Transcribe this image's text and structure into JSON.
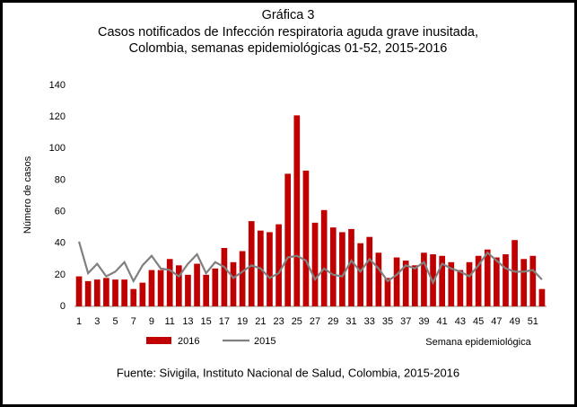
{
  "chart_data": {
    "type": "bar+line",
    "title": "Gráfica 3",
    "subtitle": [
      "Casos notificados de Infección respiratoria aguda grave inusitada,",
      "Colombia, semanas epidemiológicas 01-52, 2015-2016"
    ],
    "y_label": "Número de casos",
    "x_label": "Semana epidemiológica",
    "source": "Fuente: Sivigila, Instituto Nacional de Salud, Colombia, 2015-2016",
    "categories": [
      "1",
      null,
      "3",
      null,
      "5",
      null,
      "7",
      null,
      "9",
      null,
      "11",
      null,
      "13",
      null,
      "15",
      null,
      "17",
      null,
      "19",
      null,
      "21",
      null,
      "23",
      null,
      "25",
      null,
      "27",
      null,
      "29",
      null,
      "31",
      null,
      "33",
      null,
      "35",
      null,
      "37",
      null,
      "39",
      null,
      "41",
      null,
      "43",
      null,
      "45",
      null,
      "47",
      null,
      "49",
      null,
      "51",
      null
    ],
    "series": [
      {
        "name": "2016",
        "type": "bar",
        "color": "#c00000",
        "values": [
          19,
          16,
          17,
          18,
          17,
          17,
          11,
          15,
          23,
          23,
          30,
          26,
          20,
          27,
          20,
          24,
          37,
          28,
          35,
          54,
          48,
          47,
          52,
          84,
          121,
          86,
          53,
          61,
          50,
          47,
          49,
          40,
          44,
          34,
          18,
          31,
          29,
          26,
          34,
          33,
          32,
          28,
          23,
          28,
          32,
          36,
          31,
          33,
          42,
          30,
          32,
          11
        ]
      },
      {
        "name": "2015",
        "type": "line",
        "color": "#808080",
        "values": [
          41,
          21,
          27,
          19,
          22,
          28,
          16,
          26,
          32,
          24,
          23,
          19,
          27,
          33,
          21,
          28,
          25,
          18,
          22,
          26,
          24,
          18,
          21,
          31,
          32,
          29,
          17,
          24,
          20,
          19,
          29,
          22,
          30,
          24,
          16,
          20,
          26,
          24,
          28,
          15,
          27,
          24,
          22,
          19,
          26,
          34,
          29,
          24,
          22,
          22,
          23,
          17
        ]
      }
    ],
    "ylim": [
      0,
      140
    ],
    "yticks": [
      0,
      20,
      40,
      60,
      80,
      100,
      120,
      140
    ],
    "grid": false,
    "legend": "bottom-left"
  }
}
